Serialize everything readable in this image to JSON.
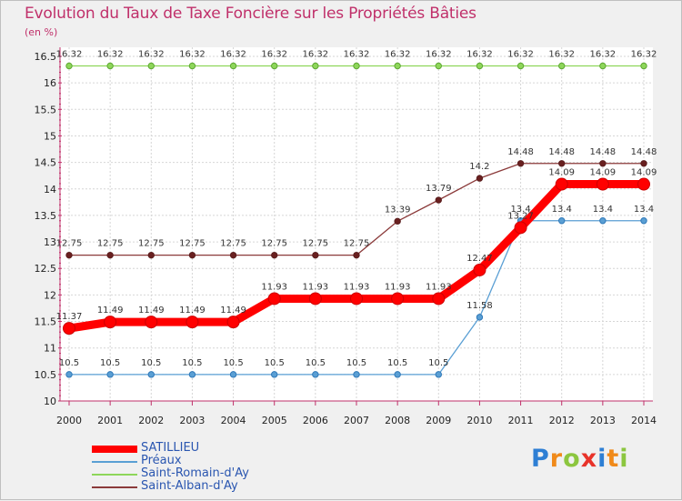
{
  "header": {
    "title": "Evolution du Taux de Taxe Foncière sur les Propriétés Bâties",
    "unit": "(en %)"
  },
  "chart_data": {
    "type": "line",
    "title": "Evolution du Taux de Taxe Foncière sur les Propriétés Bâties",
    "ylabel": "(en %)",
    "xlabel": "",
    "x": [
      "2000",
      "2001",
      "2002",
      "2003",
      "2004",
      "2005",
      "2006",
      "2007",
      "2008",
      "2009",
      "2010",
      "2011",
      "2012",
      "2013",
      "2014"
    ],
    "ylim": [
      10,
      16.5
    ],
    "yticks": [
      "10",
      "10.5",
      "11",
      "11.5",
      "12",
      "12.5",
      "13",
      "13.5",
      "14",
      "14.5",
      "15",
      "15.5",
      "16",
      "16.5"
    ],
    "grid": true,
    "legend": "bottom-left",
    "series": [
      {
        "name": "Préaux",
        "color": "#5a9fd4",
        "values": [
          10.5,
          10.5,
          10.5,
          10.5,
          10.5,
          10.5,
          10.5,
          10.5,
          10.5,
          10.5,
          11.58,
          13.4,
          13.4,
          13.4,
          13.4
        ],
        "labels": [
          "10.5",
          "10.5",
          "10.5",
          "10.5",
          "10.5",
          "10.5",
          "10.5",
          "10.5",
          "10.5",
          "10.5",
          "11.58",
          "13.4",
          "13.4",
          "13.4",
          "13.4"
        ]
      },
      {
        "name": "Saint-Romain-d'Ay",
        "color": "#8ed65a",
        "values": [
          16.32,
          16.32,
          16.32,
          16.32,
          16.32,
          16.32,
          16.32,
          16.32,
          16.32,
          16.32,
          16.32,
          16.32,
          16.32,
          16.32,
          16.32
        ],
        "labels": [
          "16.32",
          "16.32",
          "16.32",
          "16.32",
          "16.32",
          "16.32",
          "16.32",
          "16.32",
          "16.32",
          "16.32",
          "16.32",
          "16.32",
          "16.32",
          "16.32",
          "16.32"
        ]
      },
      {
        "name": "Saint-Alban-d'Ay",
        "color": "#8b3a3a",
        "values": [
          12.75,
          12.75,
          12.75,
          12.75,
          12.75,
          12.75,
          12.75,
          12.75,
          13.39,
          13.79,
          14.2,
          14.48,
          14.48,
          14.48,
          14.48
        ],
        "labels": [
          "12.75",
          "12.75",
          "12.75",
          "12.75",
          "12.75",
          "12.75",
          "12.75",
          "12.75",
          "13.39",
          "13.79",
          "14.2",
          "14.48",
          "14.48",
          "14.48",
          "14.48"
        ]
      },
      {
        "name": "SATILLIEU",
        "color": "#ff0000",
        "values": [
          11.37,
          11.49,
          11.49,
          11.49,
          11.49,
          11.93,
          11.93,
          11.93,
          11.93,
          11.93,
          12.47,
          13.27,
          14.09,
          14.09,
          14.09
        ],
        "labels": [
          "11.37",
          "11.49",
          "11.49",
          "11.49",
          "11.49",
          "11.93",
          "11.93",
          "11.93",
          "11.93",
          "11.93",
          "12.47",
          "13.27",
          "14.09",
          "14.09",
          "14.09"
        ]
      }
    ]
  },
  "legend": {
    "items": [
      {
        "label": "SATILLIEU",
        "color": "#ff0000"
      },
      {
        "label": "Préaux",
        "color": "#5a9fd4"
      },
      {
        "label": "Saint-Romain-d'Ay",
        "color": "#8ed65a"
      },
      {
        "label": "Saint-Alban-d'Ay",
        "color": "#8b3a3a"
      }
    ]
  },
  "logo": {
    "letters": [
      "P",
      "r",
      "o",
      "x",
      "i",
      "t",
      "i"
    ],
    "colors": [
      "#2e7fd4",
      "#f08a1a",
      "#8cc63f",
      "#e8332a",
      "#2e7fd4",
      "#f08a1a",
      "#8cc63f"
    ]
  }
}
